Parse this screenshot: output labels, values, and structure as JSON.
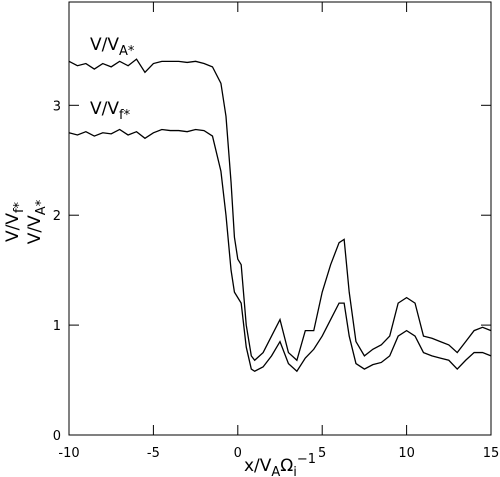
{
  "chart_data": {
    "type": "line",
    "xlabel": {
      "text": "x/V",
      "sub": "A",
      "text2": "Ω",
      "sub2": "i",
      "sup": "−1"
    },
    "ylabel": [
      {
        "text": "V/V",
        "sub": "f*"
      },
      {
        "text": "V/V",
        "sub": "A*"
      }
    ],
    "annotations": [
      {
        "text": "V/V",
        "sub": "A*"
      },
      {
        "text": "V/V",
        "sub": "f*"
      }
    ],
    "xlim": [
      -10,
      15
    ],
    "xticks": [
      -10,
      -5,
      0,
      5,
      10,
      15
    ],
    "ylim": [
      0,
      3.94
    ],
    "yticks": [
      0,
      1,
      2,
      3
    ],
    "x": [
      -10,
      -9.5,
      -9,
      -8.5,
      -8,
      -7.5,
      -7,
      -6.5,
      -6,
      -5.5,
      -5,
      -4.5,
      -4,
      -3.5,
      -3,
      -2.5,
      -2,
      -1.5,
      -1,
      -0.7,
      -0.4,
      -0.2,
      0,
      0.2,
      0.5,
      0.8,
      1,
      1.5,
      2,
      2.5,
      3,
      3.5,
      4,
      4.5,
      5,
      5.5,
      6,
      6.3,
      6.6,
      7,
      7.5,
      8,
      8.5,
      9,
      9.5,
      10,
      10.5,
      11,
      11.5,
      12,
      12.5,
      13,
      13.5,
      14,
      14.5,
      15
    ],
    "series": [
      {
        "color": "#000000",
        "values": [
          3.4,
          3.36,
          3.38,
          3.33,
          3.38,
          3.35,
          3.4,
          3.36,
          3.42,
          3.3,
          3.38,
          3.4,
          3.4,
          3.4,
          3.39,
          3.4,
          3.38,
          3.35,
          3.2,
          2.9,
          2.3,
          1.8,
          1.6,
          1.55,
          1.0,
          0.72,
          0.68,
          0.75,
          0.9,
          1.05,
          0.75,
          0.68,
          0.95,
          0.95,
          1.3,
          1.55,
          1.75,
          1.78,
          1.3,
          0.85,
          0.72,
          0.78,
          0.82,
          0.9,
          1.2,
          1.25,
          1.2,
          0.9,
          0.88,
          0.85,
          0.82,
          0.75,
          0.85,
          0.95,
          0.98,
          0.95
        ]
      },
      {
        "color": "#000000",
        "values": [
          2.75,
          2.73,
          2.76,
          2.72,
          2.75,
          2.74,
          2.78,
          2.73,
          2.76,
          2.7,
          2.75,
          2.78,
          2.77,
          2.77,
          2.76,
          2.78,
          2.77,
          2.72,
          2.4,
          2.0,
          1.5,
          1.3,
          1.25,
          1.2,
          0.8,
          0.6,
          0.58,
          0.62,
          0.72,
          0.85,
          0.65,
          0.58,
          0.7,
          0.78,
          0.9,
          1.05,
          1.2,
          1.2,
          0.9,
          0.65,
          0.6,
          0.64,
          0.66,
          0.72,
          0.9,
          0.95,
          0.9,
          0.75,
          0.72,
          0.7,
          0.68,
          0.6,
          0.68,
          0.75,
          0.75,
          0.72
        ]
      }
    ]
  }
}
